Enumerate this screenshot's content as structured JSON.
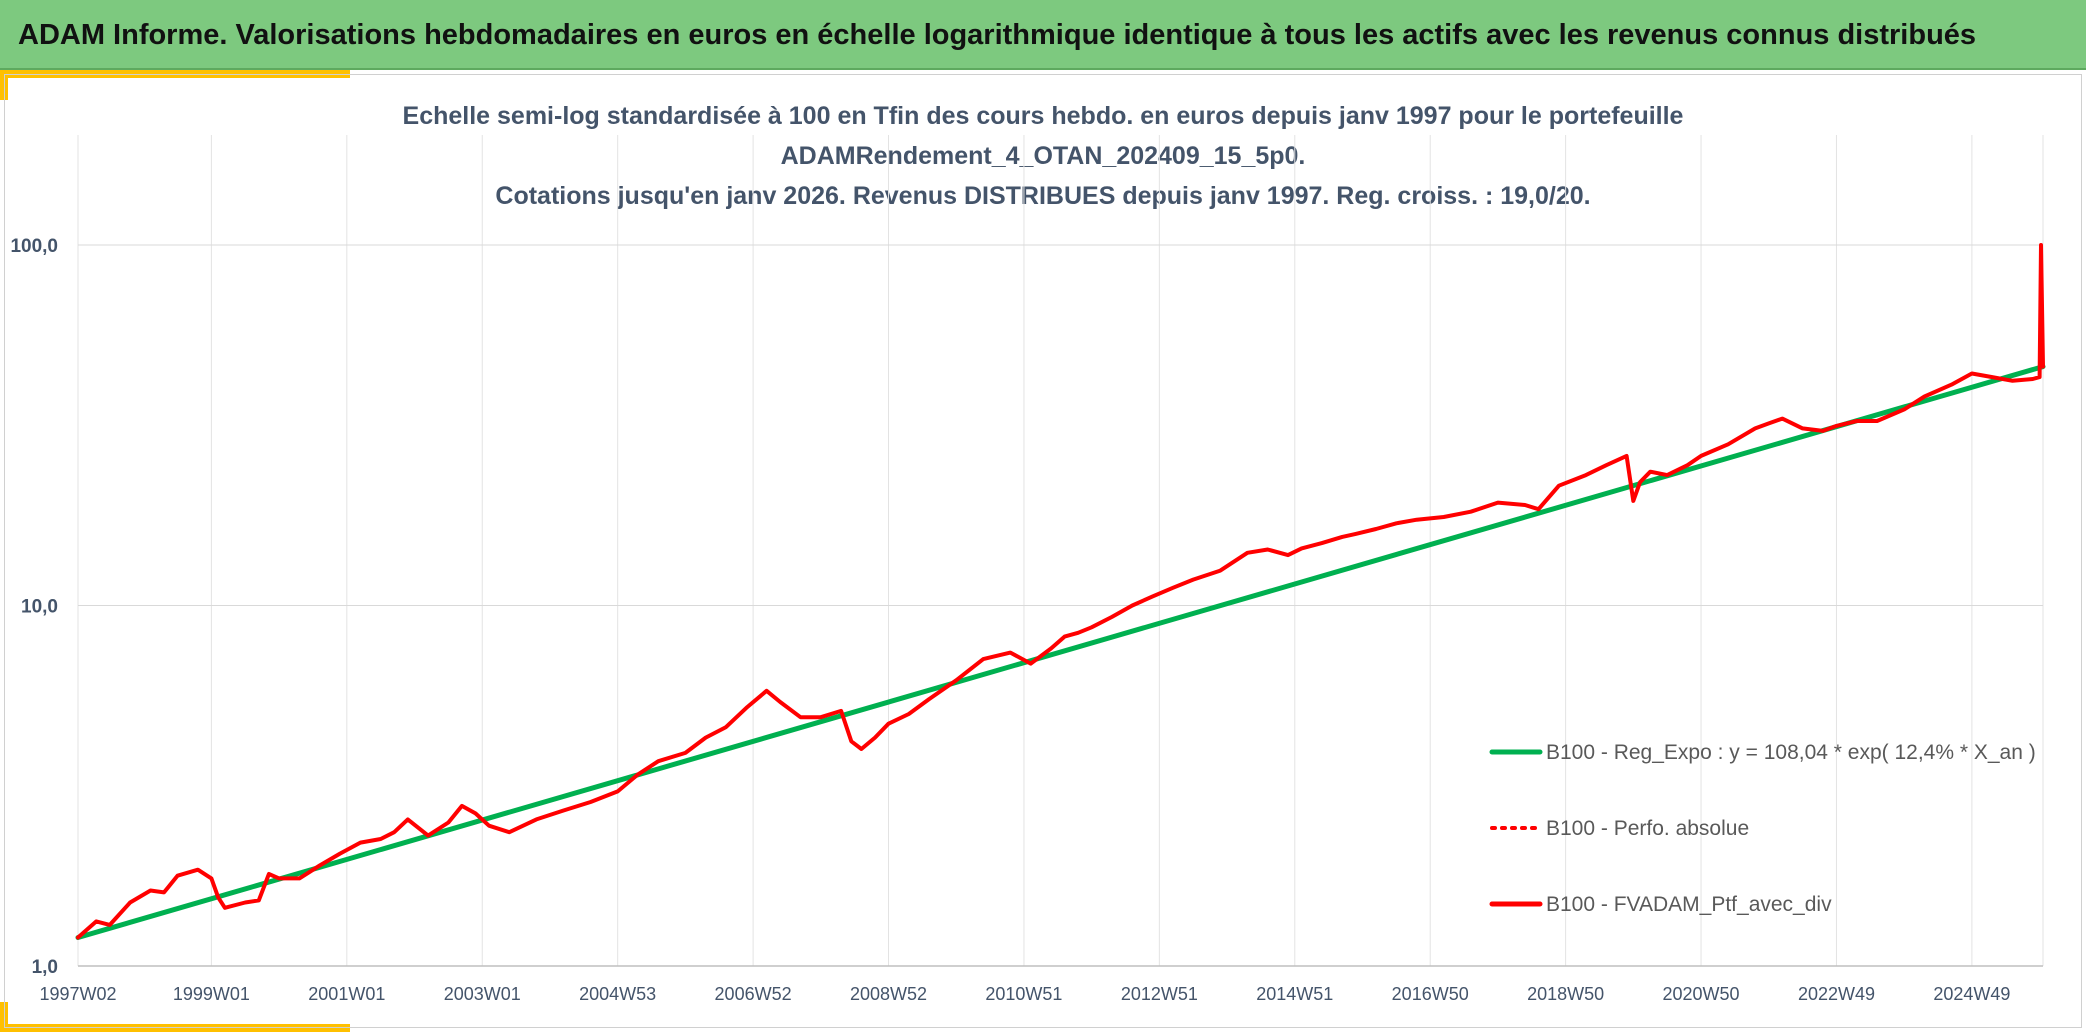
{
  "header": {
    "title": "ADAM Informe. Valorisations hebdomadaires en euros en échelle logarithmique identique à tous les actifs avec les revenus connus distribués"
  },
  "colors": {
    "header_bg": "#7dc97f",
    "accent": "#ffc000",
    "regression": "#00b050",
    "portfolio": "#ff0000"
  },
  "chart_data": {
    "type": "line",
    "title_lines": [
      "Echelle semi-log standardisée à 100 en Tfin des cours hebdo. en euros depuis janv 1997 pour le portefeuille",
      "ADAMRendement_4_OTAN_202409_15_5p0.",
      "Cotations jusqu'en janv 2026. Revenus DISTRIBUES depuis janv 1997. Reg. croiss. : 19,0/20."
    ],
    "y_scale": "log",
    "ylim": [
      1,
      100
    ],
    "y_ticks": [
      1,
      10,
      100
    ],
    "y_tick_labels": [
      "1,0",
      "10,0",
      "100,0"
    ],
    "xlim": [
      1997.03,
      2026.05
    ],
    "x_ticks": [
      1997.03,
      1999.0,
      2001.0,
      2003.0,
      2005.0,
      2007.0,
      2009.0,
      2011.0,
      2013.0,
      2015.0,
      2017.0,
      2019.0,
      2021.0,
      2023.0,
      2025.0
    ],
    "x_tick_labels": [
      "1997W02",
      "1999W01",
      "2001W01",
      "2003W01",
      "2004W53",
      "2006W52",
      "2008W52",
      "2010W51",
      "2012W51",
      "2014W51",
      "2016W50",
      "2018W50",
      "2020W50",
      "2022W49",
      "2024W49"
    ],
    "grid": "vertical",
    "legend_position": "right",
    "series": [
      {
        "name": "B100 - Reg_Expo : y = 108,04 * exp( 12,4% *  X_an )",
        "style": "solid",
        "color": "#00b050",
        "x": [
          1997.03,
          2026.05
        ],
        "y": [
          1.2,
          46
        ]
      },
      {
        "name": "B100 - Perfo. absolue",
        "style": "dotted",
        "color": "#ff0000",
        "x": [],
        "y": []
      },
      {
        "name": "B100 - FVADAM_Ptf_avec_div",
        "style": "solid",
        "color": "#ff0000",
        "x": [
          1997.03,
          1997.3,
          1997.5,
          1997.8,
          1998.1,
          1998.3,
          1998.5,
          1998.8,
          1999.0,
          1999.1,
          1999.2,
          1999.5,
          1999.7,
          1999.85,
          2000.0,
          2000.3,
          2000.6,
          2000.9,
          2001.2,
          2001.5,
          2001.7,
          2001.9,
          2002.2,
          2002.5,
          2002.7,
          2002.9,
          2003.1,
          2003.4,
          2003.8,
          2004.2,
          2004.6,
          2005.0,
          2005.3,
          2005.6,
          2006.0,
          2006.3,
          2006.6,
          2006.9,
          2007.2,
          2007.4,
          2007.7,
          2008.0,
          2008.3,
          2008.45,
          2008.6,
          2008.8,
          2009.0,
          2009.3,
          2009.6,
          2010.0,
          2010.4,
          2010.8,
          2011.1,
          2011.4,
          2011.6,
          2011.8,
          2012.0,
          2012.3,
          2012.6,
          2012.9,
          2013.2,
          2013.5,
          2013.9,
          2014.3,
          2014.6,
          2014.9,
          2015.1,
          2015.4,
          2015.7,
          2015.9,
          2016.2,
          2016.5,
          2016.8,
          2017.2,
          2017.6,
          2018.0,
          2018.4,
          2018.6,
          2018.9,
          2019.3,
          2019.6,
          2019.9,
          2020.0,
          2020.1,
          2020.25,
          2020.5,
          2020.8,
          2021.0,
          2021.4,
          2021.8,
          2022.0,
          2022.2,
          2022.5,
          2022.8,
          2023.0,
          2023.3,
          2023.6,
          2024.0,
          2024.3,
          2024.7,
          2025.0,
          2025.3,
          2025.6,
          2025.9,
          2026.0,
          2026.02,
          2026.05
        ],
        "y": [
          1.2,
          1.33,
          1.3,
          1.5,
          1.62,
          1.6,
          1.78,
          1.85,
          1.75,
          1.55,
          1.45,
          1.5,
          1.52,
          1.8,
          1.75,
          1.75,
          1.9,
          2.05,
          2.2,
          2.25,
          2.35,
          2.55,
          2.3,
          2.5,
          2.78,
          2.65,
          2.45,
          2.35,
          2.55,
          2.7,
          2.85,
          3.05,
          3.4,
          3.7,
          3.9,
          4.3,
          4.6,
          5.2,
          5.8,
          5.4,
          4.9,
          4.9,
          5.1,
          4.2,
          4.0,
          4.3,
          4.7,
          5.0,
          5.5,
          6.2,
          7.1,
          7.4,
          6.9,
          7.6,
          8.2,
          8.4,
          8.7,
          9.3,
          10.0,
          10.6,
          11.2,
          11.8,
          12.5,
          14.0,
          14.3,
          13.8,
          14.4,
          14.9,
          15.5,
          15.8,
          16.3,
          16.9,
          17.3,
          17.6,
          18.2,
          19.3,
          19.0,
          18.5,
          21.5,
          23.0,
          24.5,
          26.0,
          19.5,
          22.0,
          23.5,
          23.0,
          24.5,
          26.0,
          28.0,
          31.0,
          32.0,
          33.0,
          31.0,
          30.5,
          31.5,
          32.5,
          32.5,
          35.0,
          38.0,
          41.0,
          44.0,
          43.0,
          42.0,
          42.5,
          43.0,
          100.0,
          46.0
        ]
      }
    ]
  }
}
